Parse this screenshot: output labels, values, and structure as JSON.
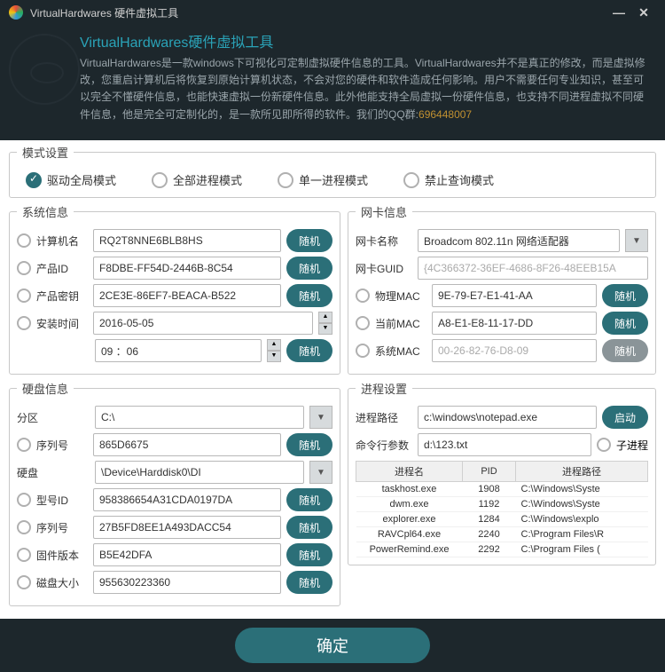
{
  "titlebar": {
    "title": "VirtualHardwares 硬件虚拟工具"
  },
  "header": {
    "title": "VirtualHardwares硬件虚拟工具",
    "desc": "VirtualHardwares是一款windows下可视化可定制虚拟硬件信息的工具。VirtualHardwares并不是真正的修改，而是虚拟修改，您重启计算机后将恢复到原始计算机状态，不会对您的硬件和软件造成任何影响。用户不需要任何专业知识，甚至可以完全不懂硬件信息，也能快速虚拟一份新硬件信息。此外他能支持全局虚拟一份硬件信息，也支持不同进程虚拟不同硬件信息，他是完全可定制化的，是一款所见即所得的软件。",
    "qq_label": "我们的QQ群:",
    "qq": "696448007"
  },
  "mode": {
    "legend": "模式设置",
    "opts": [
      "驱动全局模式",
      "全部进程模式",
      "单一进程模式",
      "禁止查询模式"
    ]
  },
  "sys": {
    "legend": "系统信息",
    "computer_lbl": "计算机名",
    "computer_val": "RQ2T8NNE6BLB8HS",
    "product_lbl": "产品ID",
    "product_val": "F8DBE-FF54D-2446B-8C54",
    "key_lbl": "产品密钥",
    "key_val": "2CE3E-86EF7-BEACA-B522",
    "install_lbl": "安装时间",
    "install_val": "2016-05-05",
    "time_val": "09 ：06",
    "rand": "随机"
  },
  "nic": {
    "legend": "网卡信息",
    "name_lbl": "网卡名称",
    "name_val": "Broadcom 802.11n 网络适配器",
    "guid_lbl": "网卡GUID",
    "guid_val": "{4C366372-36EF-4686-8F26-48EEB15A",
    "pmac_lbl": "物理MAC",
    "pmac_val": "9E-79-E7-E1-41-AA",
    "cmac_lbl": "当前MAC",
    "cmac_val": "A8-E1-E8-11-17-DD",
    "smac_lbl": "系统MAC",
    "smac_val": "00-26-82-76-D8-09",
    "rand": "随机"
  },
  "disk": {
    "legend": "硬盘信息",
    "part_lbl": "分区",
    "part_val": "C:\\",
    "serial_lbl": "序列号",
    "serial_val": "865D6675",
    "hd_lbl": "硬盘",
    "hd_val": "\\Device\\Harddisk0\\DI",
    "model_lbl": "型号ID",
    "model_val": "958386654A31CDA0197DA",
    "serial2_lbl": "序列号",
    "serial2_val": "27B5FD8EE1A493DACC54",
    "fw_lbl": "固件版本",
    "fw_val": "B5E42DFA",
    "size_lbl": "磁盘大小",
    "size_val": "955630223360",
    "rand": "随机"
  },
  "proc": {
    "legend": "进程设置",
    "path_lbl": "进程路径",
    "path_val": "c:\\windows\\notepad.exe",
    "arg_lbl": "命令行参数",
    "arg_val": "d:\\123.txt",
    "launch": "启动",
    "child": "子进程",
    "cols": [
      "进程名",
      "PID",
      "进程路径"
    ],
    "rows": [
      [
        "taskhost.exe",
        "1908",
        "C:\\Windows\\Syste"
      ],
      [
        "dwm.exe",
        "1192",
        "C:\\Windows\\Syste"
      ],
      [
        "explorer.exe",
        "1284",
        "C:\\Windows\\explo"
      ],
      [
        "RAVCpl64.exe",
        "2240",
        "C:\\Program Files\\R"
      ],
      [
        "PowerRemind.exe",
        "2292",
        "C:\\Program Files ("
      ]
    ]
  },
  "footer": {
    "ok": "确定"
  }
}
